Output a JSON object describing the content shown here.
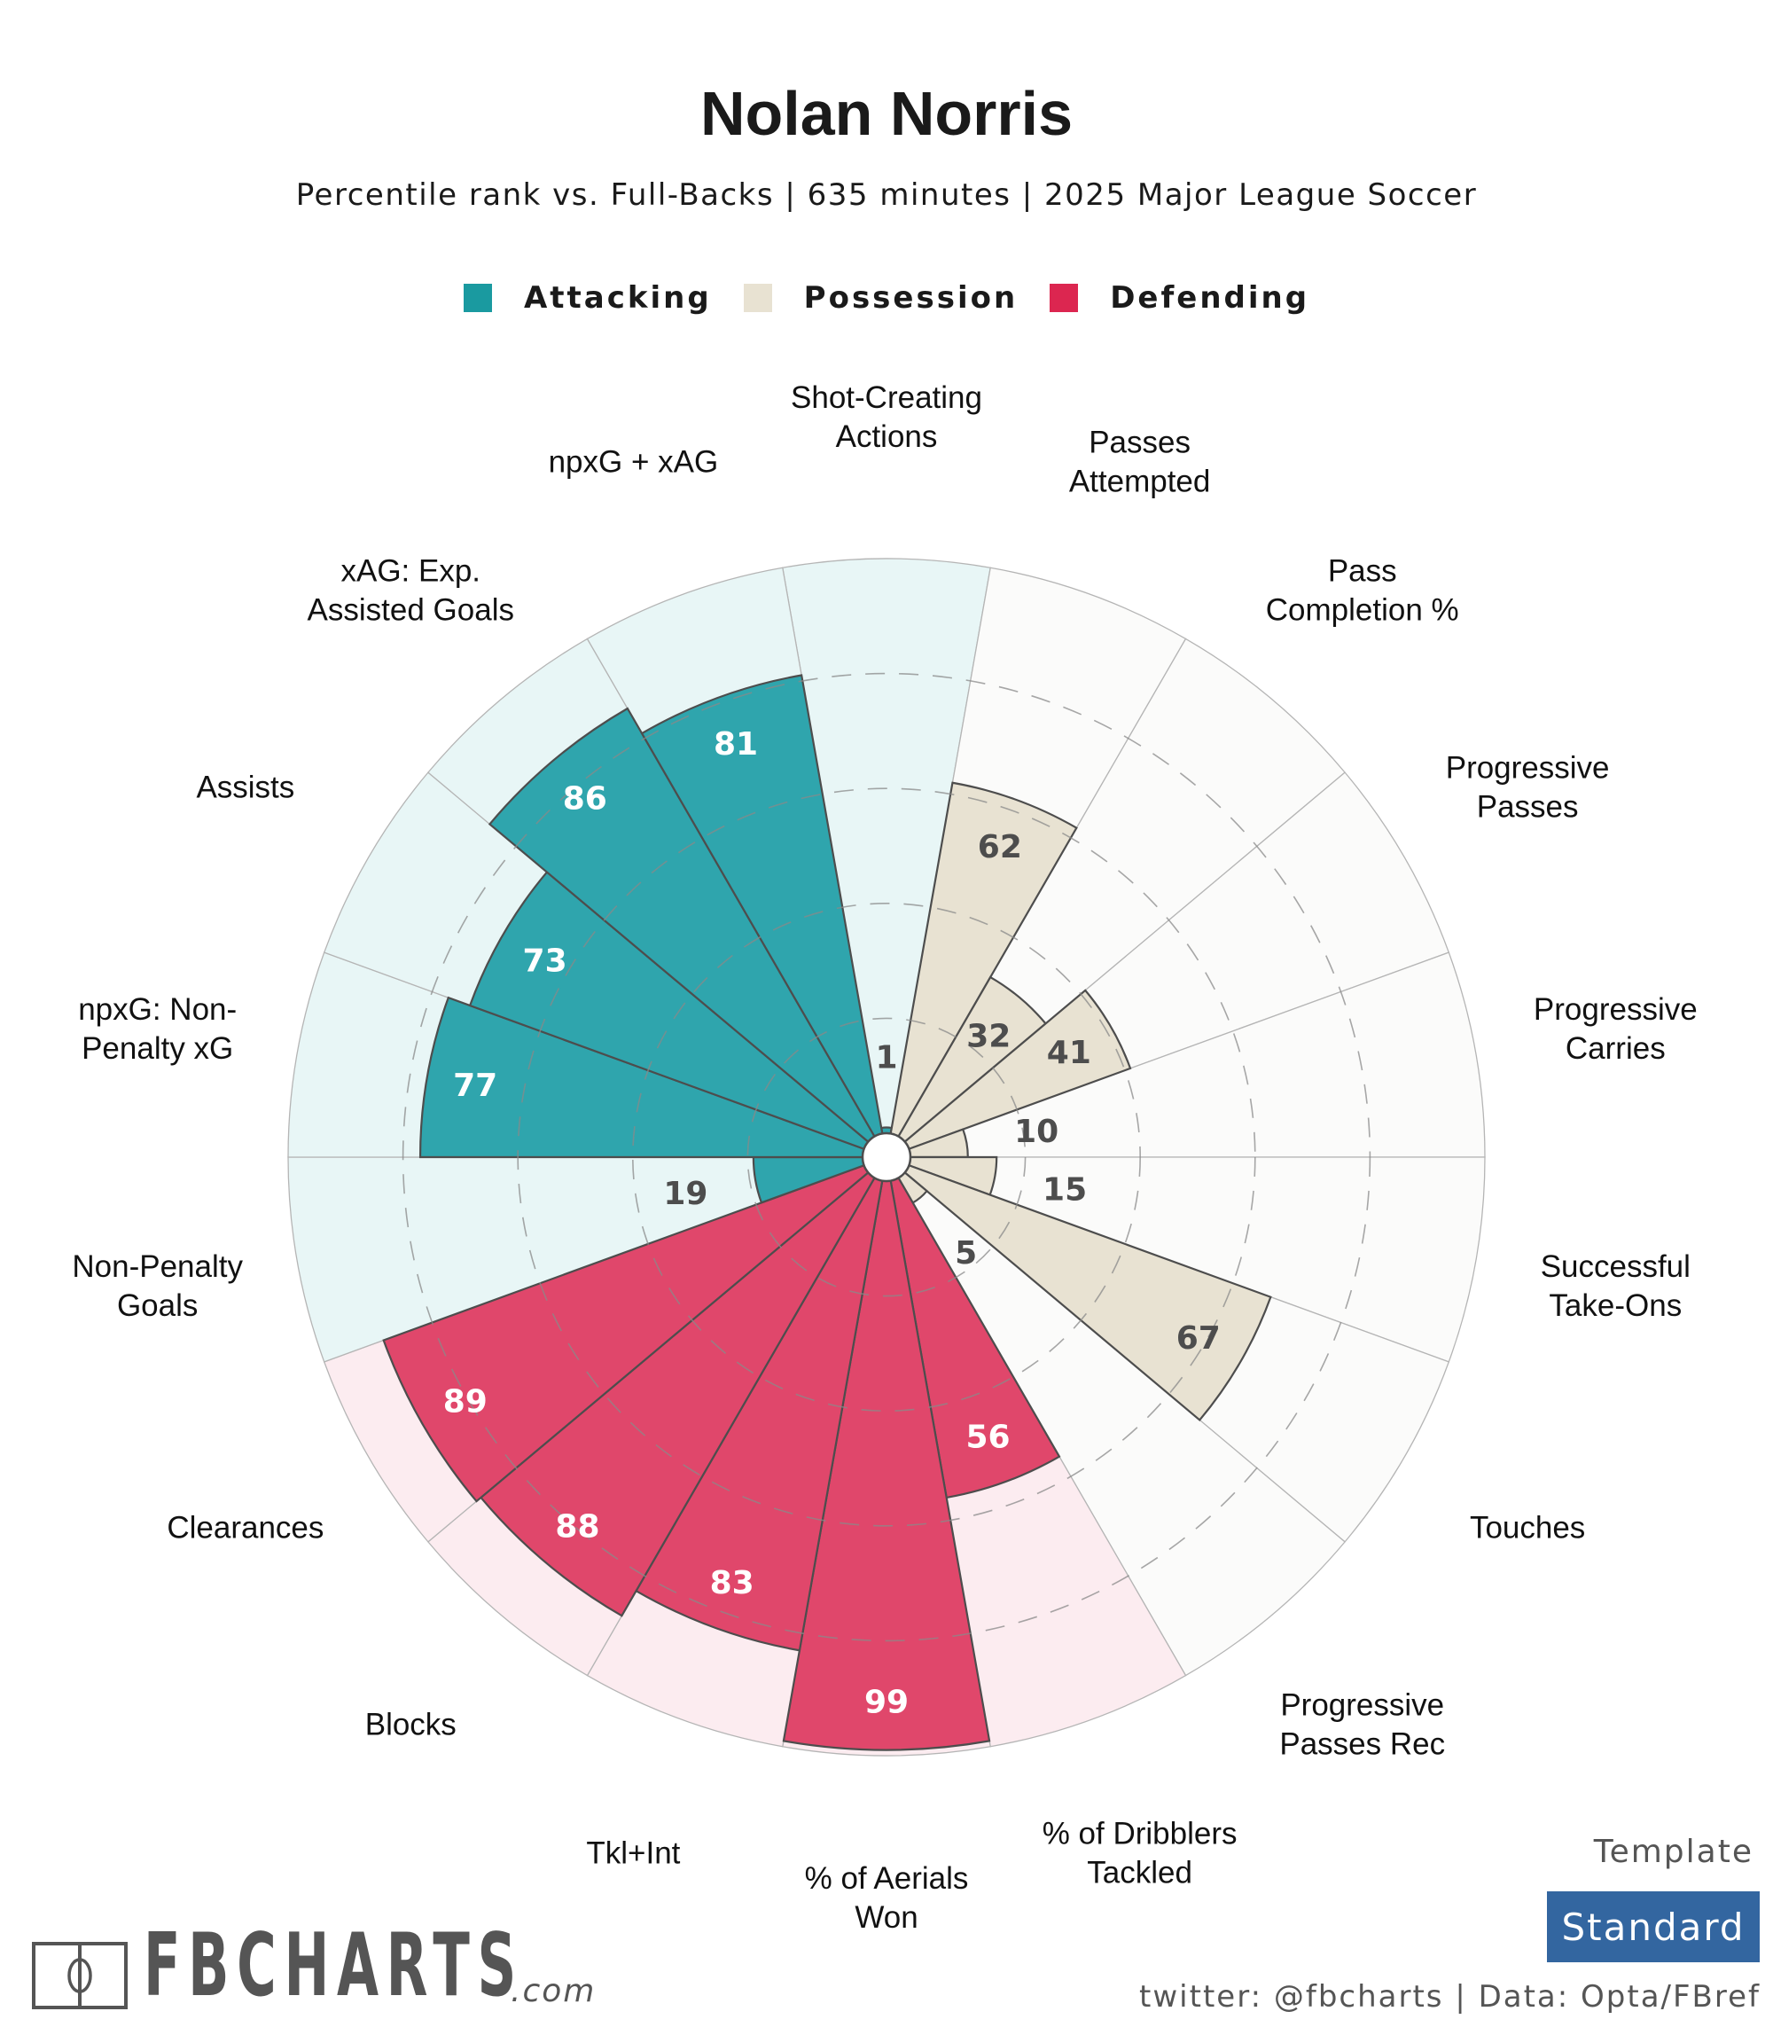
{
  "header": {
    "title": "Nolan Norris",
    "subtitle": "Percentile rank vs. Full-Backs | 635 minutes | 2025 Major League Soccer"
  },
  "legend": [
    {
      "label": "Attacking",
      "color": "#1a9aa0"
    },
    {
      "label": "Possession",
      "color": "#e8e2d2"
    },
    {
      "label": "Defending",
      "color": "#dc2650"
    }
  ],
  "colors": {
    "attacking_bar": "#2fa5ad",
    "attacking_bg": "#e8f6f6",
    "possession_bar": "#e8e2d2",
    "possession_bg": "#fbfbfa",
    "defending_bar": "#e0476b",
    "defending_bg": "#fcecf0",
    "value_dark": "#4d4d4d",
    "value_light": "#ffffff"
  },
  "chart_data": {
    "type": "polar-bar",
    "title": "Nolan Norris",
    "subtitle": "Percentile rank vs. Full-Backs | 635 minutes | 2025 Major League Soccer",
    "rlim": [
      0,
      100
    ],
    "gridlines": [
      20,
      40,
      60,
      80
    ],
    "categories": [
      {
        "label": [
          "Shot-Creating",
          "Actions"
        ],
        "value": 1,
        "group": "attacking"
      },
      {
        "label": [
          "Passes",
          "Attempted"
        ],
        "value": 62,
        "group": "possession"
      },
      {
        "label": [
          "Pass",
          "Completion %"
        ],
        "value": 32,
        "group": "possession"
      },
      {
        "label": [
          "Progressive",
          "Passes"
        ],
        "value": 41,
        "group": "possession"
      },
      {
        "label": [
          "Progressive",
          "Carries"
        ],
        "value": 10,
        "group": "possession"
      },
      {
        "label": [
          "Successful",
          "Take-Ons"
        ],
        "value": 15,
        "group": "possession"
      },
      {
        "label": [
          "Touches"
        ],
        "value": 67,
        "group": "possession"
      },
      {
        "label": [
          "Progressive",
          "Passes Rec"
        ],
        "value": 5,
        "group": "possession"
      },
      {
        "label": [
          "% of Dribblers",
          "Tackled"
        ],
        "value": 56,
        "group": "defending"
      },
      {
        "label": [
          "% of Aerials",
          "Won"
        ],
        "value": 99,
        "group": "defending"
      },
      {
        "label": [
          "Tkl+Int"
        ],
        "value": 83,
        "group": "defending"
      },
      {
        "label": [
          "Blocks"
        ],
        "value": 88,
        "group": "defending"
      },
      {
        "label": [
          "Clearances"
        ],
        "value": 89,
        "group": "defending"
      },
      {
        "label": [
          "Non-Penalty",
          "Goals"
        ],
        "value": 19,
        "group": "attacking"
      },
      {
        "label": [
          "npxG: Non-",
          "Penalty xG"
        ],
        "value": 77,
        "group": "attacking"
      },
      {
        "label": [
          "Assists"
        ],
        "value": 73,
        "group": "attacking"
      },
      {
        "label": [
          "xAG: Exp.",
          "Assisted Goals"
        ],
        "value": 86,
        "group": "attacking"
      },
      {
        "label": [
          "npxG + xAG"
        ],
        "value": 81,
        "group": "attacking"
      }
    ],
    "legend": [
      "Attacking",
      "Possession",
      "Defending"
    ],
    "legend_position": "top-center"
  },
  "footer": {
    "logo_text": "FBCHARTS",
    "logo_suffix": ".com",
    "template_label": "Template",
    "template_value": "Standard",
    "credit": "twitter: @fbcharts | Data: Opta/FBref"
  }
}
